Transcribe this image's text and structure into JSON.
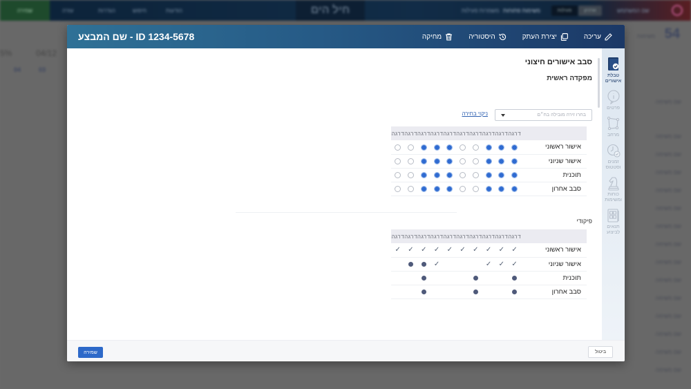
{
  "background": {
    "topbar": {
      "green_button": "שמירה",
      "nav_items": [
        "הודעות",
        "חיפוש",
        "הגדרות",
        "עזרה"
      ],
      "logo": "חיל הים",
      "links": [
        "משמרות פעילות",
        "משימות פתוחות"
      ],
      "toggle": [
        "פעילות",
        "ארכיון"
      ],
      "user": "שם המשתמש"
    },
    "count_label": "משימות",
    "count_value": "54",
    "date_fragment": "04/12",
    "percent_fragment": "5%",
    "column_numbers": [
      "04",
      "03"
    ],
    "list_rows": [
      "שם משימה",
      "שם משימה",
      "שם משימה",
      "שם משימה",
      "שם משימה",
      "שם משימה",
      "שם משימה",
      "שם משימה",
      "שם משימה",
      "שם משימה",
      "שם משימה",
      "שם משימה",
      "שם משימה",
      "שם משימה",
      "שם משימה"
    ]
  },
  "modal": {
    "title": "ID 1234-5678 - שם המבצע",
    "actions": {
      "edit": "עריכה",
      "duplicate": "יצירת העתק",
      "history": "היסטוריה",
      "delete": "מחיקה"
    },
    "rail": [
      {
        "label": "טבלת אישורים",
        "icon": "approvals-table-icon",
        "active": true
      },
      {
        "label": "פרטים",
        "icon": "info-icon",
        "active": false
      },
      {
        "label": "מרחב",
        "icon": "area-polygon-icon",
        "active": false
      },
      {
        "label": "זמנים וסטטוס",
        "icon": "clock-status-icon",
        "active": false
      },
      {
        "label": "כוחות ומשימות",
        "icon": "chess-knight-icon",
        "active": false
      },
      {
        "label": "תנאים לביצוע",
        "icon": "conditions-doc-icon",
        "active": false
      }
    ],
    "section_title": "סבב אישורים חיצוני",
    "sub_title": "מפקדה ראשית",
    "select": {
      "placeholder": "בחרו זירה מובילה בח״ם",
      "value": ""
    },
    "clear_link": "ניקוי בחירה",
    "column_header": "דרגה",
    "columns_count": 10,
    "row_labels": [
      "אישור ראשוני",
      "אישור שניוני",
      "תוכנית",
      "סבב אחרון"
    ],
    "hq_matrix": {
      "note": "columns listed right-to-left (col 1 = rightmost); true = radio selected",
      "rows": [
        [
          true,
          true,
          true,
          false,
          false,
          true,
          true,
          true,
          false,
          false
        ],
        [
          true,
          true,
          true,
          false,
          false,
          true,
          true,
          true,
          false,
          false
        ],
        [
          true,
          true,
          true,
          false,
          false,
          true,
          true,
          true,
          false,
          false
        ],
        [
          true,
          true,
          true,
          false,
          false,
          true,
          true,
          true,
          false,
          false
        ]
      ]
    },
    "group_title": "פיקודי",
    "command_matrix": {
      "note": "columns right-to-left; check = ✓, dot = ●, empty = ''",
      "rows": [
        [
          "check",
          "check",
          "check",
          "check",
          "check",
          "check",
          "check",
          "check",
          "check",
          "check"
        ],
        [
          "check",
          "check",
          "check",
          "",
          "",
          "",
          "check",
          "dot",
          "dot",
          ""
        ],
        [
          "dot",
          "",
          "",
          "dot",
          "",
          "",
          "",
          "dot",
          "",
          ""
        ],
        [
          "dot",
          "",
          "",
          "dot",
          "",
          "",
          "",
          "dot",
          "",
          ""
        ]
      ]
    },
    "footer": {
      "save": "שמירה",
      "cancel": "ביטול"
    }
  },
  "colors": {
    "header_gradient_start": "#2f7196",
    "header_gradient_end": "#1b3866",
    "primary": "#2d69c9",
    "link": "#2d5fb0",
    "rail_bg": "#dce6f0",
    "table_header_bg": "#ebebf1"
  }
}
